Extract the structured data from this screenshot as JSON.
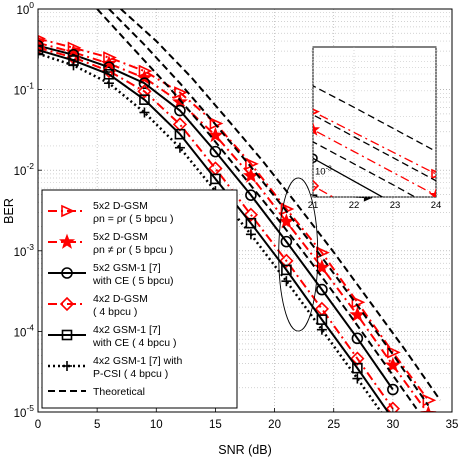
{
  "chart_data": {
    "type": "line",
    "xlabel": "SNR (dB)",
    "ylabel": "BER",
    "xlim": [
      0,
      35
    ],
    "ylim": [
      1e-05,
      1
    ],
    "yscale": "log",
    "xticks": [
      0,
      5,
      10,
      15,
      20,
      25,
      30,
      35
    ],
    "yticks": [
      {
        "v": 1e-05,
        "base": "10",
        "exp": "-5"
      },
      {
        "v": 0.0001,
        "base": "10",
        "exp": "-4"
      },
      {
        "v": 0.001,
        "base": "10",
        "exp": "-3"
      },
      {
        "v": 0.01,
        "base": "10",
        "exp": "-2"
      },
      {
        "v": 0.1,
        "base": "10",
        "exp": "-1"
      },
      {
        "v": 1,
        "base": "10",
        "exp": "0"
      }
    ],
    "grid": true,
    "legend_position": "bottom-left",
    "series": [
      {
        "name_lines": [
          "5x2 D-GSM",
          "ρn = ρr  ( 5 bpcu )"
        ],
        "color": "#ff0000",
        "dash": "9,4,2,4",
        "width": 2,
        "marker": "triangle-right",
        "x": [
          0,
          3,
          6,
          9,
          12,
          15,
          18,
          21,
          24,
          27,
          30,
          33
        ],
        "y": [
          0.43,
          0.33,
          0.25,
          0.17,
          0.092,
          0.038,
          0.012,
          0.0033,
          0.00095,
          0.00023,
          5.5e-05,
          1.4e-05
        ]
      },
      {
        "name_lines": [
          "5x2 D-GSM",
          "ρn ≠ ρr  ( 5 bpcu )"
        ],
        "color": "#ff0000",
        "dash": "9,4,2,4",
        "width": 2,
        "marker": "star",
        "x": [
          0,
          3,
          6,
          9,
          12,
          15,
          18,
          21,
          24,
          27,
          30,
          33
        ],
        "y": [
          0.38,
          0.29,
          0.21,
          0.14,
          0.07,
          0.027,
          0.0085,
          0.0023,
          0.00062,
          0.00016,
          3.8e-05,
          9.5e-06
        ]
      },
      {
        "name_lines": [
          "5x2  GSM-1 [7]",
          "with CE ( 5 bpcu)"
        ],
        "color": "#000000",
        "dash": "",
        "width": 2,
        "marker": "circle",
        "x": [
          0,
          3,
          6,
          9,
          12,
          15,
          18,
          21,
          24,
          27,
          30
        ],
        "y": [
          0.35,
          0.27,
          0.19,
          0.12,
          0.055,
          0.017,
          0.0049,
          0.0013,
          0.00033,
          8.2e-05,
          1.9e-05
        ]
      },
      {
        "name_lines": [
          "4x2 D-GSM",
          "( 4 bpcu )"
        ],
        "color": "#ff0000",
        "dash": "9,4,2,4",
        "width": 2,
        "marker": "diamond",
        "x": [
          0,
          3,
          6,
          9,
          12,
          15,
          18,
          21,
          24,
          27,
          30
        ],
        "y": [
          0.33,
          0.25,
          0.17,
          0.095,
          0.037,
          0.0105,
          0.0028,
          0.00075,
          0.00019,
          4.6e-05,
          1.1e-05
        ]
      },
      {
        "name_lines": [
          "4x2 GSM-1 [7]",
          "with CE ( 4 bpcu )"
        ],
        "color": "#000000",
        "dash": "",
        "width": 2,
        "marker": "square",
        "x": [
          0,
          3,
          6,
          9,
          12,
          15,
          18,
          21,
          24,
          27,
          30
        ],
        "y": [
          0.31,
          0.23,
          0.155,
          0.075,
          0.028,
          0.0078,
          0.0022,
          0.00058,
          0.00014,
          3.5e-05,
          8.2e-06
        ]
      },
      {
        "name_lines": [
          "4x2 GSM-1 [7] with",
          "P-CSI  ( 4 bpcu )"
        ],
        "color": "#000000",
        "dash": "2,3",
        "width": 2.5,
        "marker": "plus",
        "x": [
          0,
          3,
          6,
          9,
          12,
          15,
          18,
          21,
          24,
          27,
          30
        ],
        "y": [
          0.28,
          0.2,
          0.12,
          0.052,
          0.019,
          0.0055,
          0.0016,
          0.00042,
          0.000105,
          2.6e-05,
          6.2e-06
        ]
      },
      {
        "name_lines": [
          "Theoretical"
        ],
        "color": "#000000",
        "dash": "7,4",
        "width": 2,
        "marker": "none",
        "legend_index": 6,
        "x": [
          5,
          8,
          11,
          14,
          17,
          20,
          23,
          26,
          29,
          32
        ],
        "y": [
          1.0,
          0.33,
          0.11,
          0.034,
          0.0098,
          0.0028,
          0.00075,
          0.00019,
          4.6e-05,
          1.1e-05
        ]
      },
      {
        "name_lines": [],
        "color": "#000000",
        "dash": "7,4",
        "width": 2,
        "marker": "none",
        "x": [
          6,
          9,
          12,
          15,
          18,
          21,
          24,
          27,
          30,
          33
        ],
        "y": [
          1.0,
          0.36,
          0.12,
          0.037,
          0.011,
          0.0031,
          0.00083,
          0.00021,
          5.2e-05,
          1.2e-05
        ]
      },
      {
        "name_lines": [],
        "color": "#000000",
        "dash": "7,4",
        "width": 2,
        "marker": "none",
        "x": [
          7,
          10,
          13,
          16,
          19,
          22,
          25,
          28,
          31,
          34
        ],
        "y": [
          1.0,
          0.4,
          0.14,
          0.043,
          0.013,
          0.0036,
          0.00096,
          0.00024,
          6e-05,
          1.4e-05
        ]
      }
    ],
    "inset": {
      "xlim": [
        21,
        24
      ],
      "xticks": [
        21,
        22,
        23,
        24
      ],
      "ylim": [
        0.0006,
        0.012
      ],
      "ytick": {
        "v": 0.001,
        "base": "10",
        "exp": "-3"
      },
      "zoom_ellipse": {
        "cx": 22,
        "cy": 0.0009,
        "rx_units": 3.3,
        "decades_half": 0.95
      }
    }
  }
}
